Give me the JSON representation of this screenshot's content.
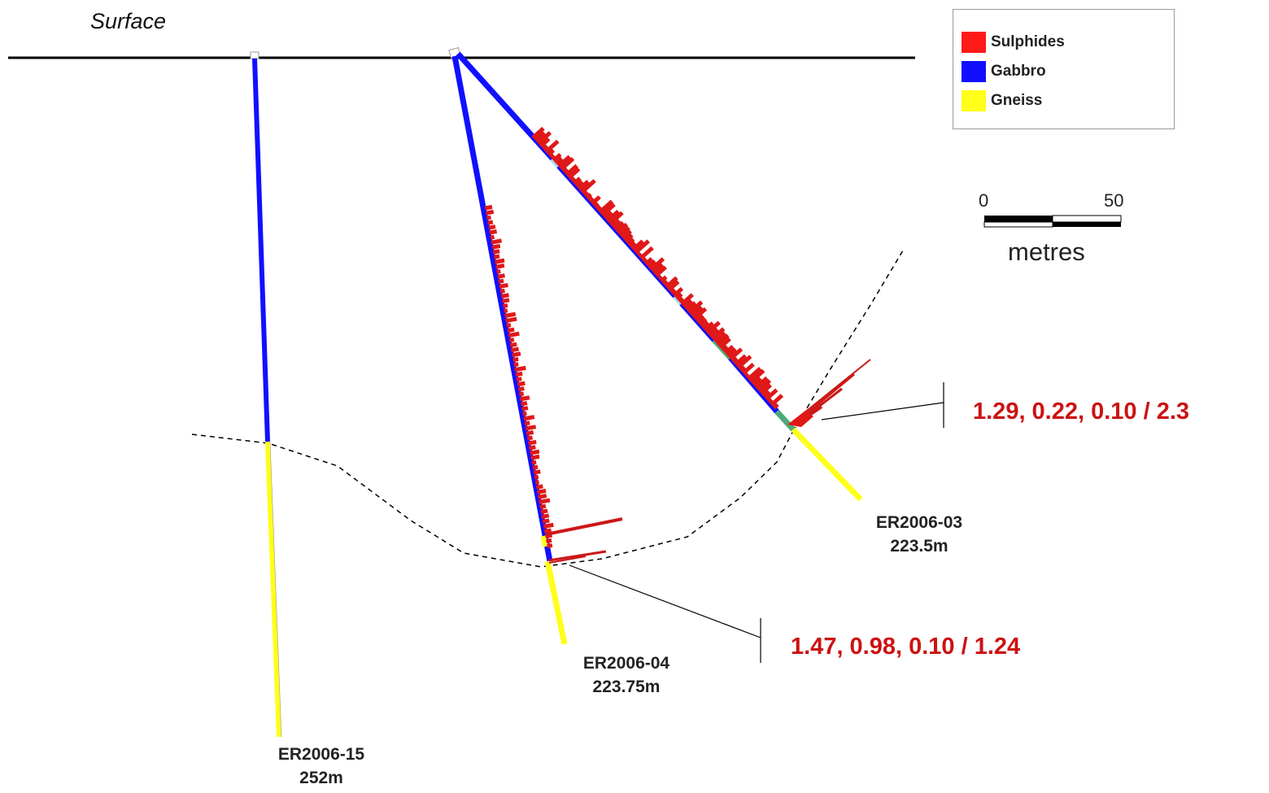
{
  "surface_label": "Surface",
  "legend": {
    "items": [
      {
        "label": "Sulphides",
        "color": "#ff1a1a"
      },
      {
        "label": "Gabbro",
        "color": "#1010ff"
      },
      {
        "label": "Gneiss",
        "color": "#ffff1a"
      }
    ]
  },
  "scale_bar": {
    "min_label": "0",
    "max_label": "50",
    "unit": "metres"
  },
  "holes": [
    {
      "id": "ER2006-15",
      "length": "252m"
    },
    {
      "id": "ER2006-04",
      "length": "223.75m"
    },
    {
      "id": "ER2006-03",
      "length": "223.5m"
    }
  ],
  "assays": [
    {
      "hole": "ER2006-03",
      "text": "1.29, 0.22, 0.10 / 2.3"
    },
    {
      "hole": "ER2006-04",
      "text": "1.47, 0.98, 0.10 / 1.24"
    }
  ],
  "colors": {
    "sulphides": "#e01818",
    "gabbro": "#1010ff",
    "gneiss": "#ffff1a",
    "altered": "#4daa7a",
    "surface_line": "#000000"
  }
}
